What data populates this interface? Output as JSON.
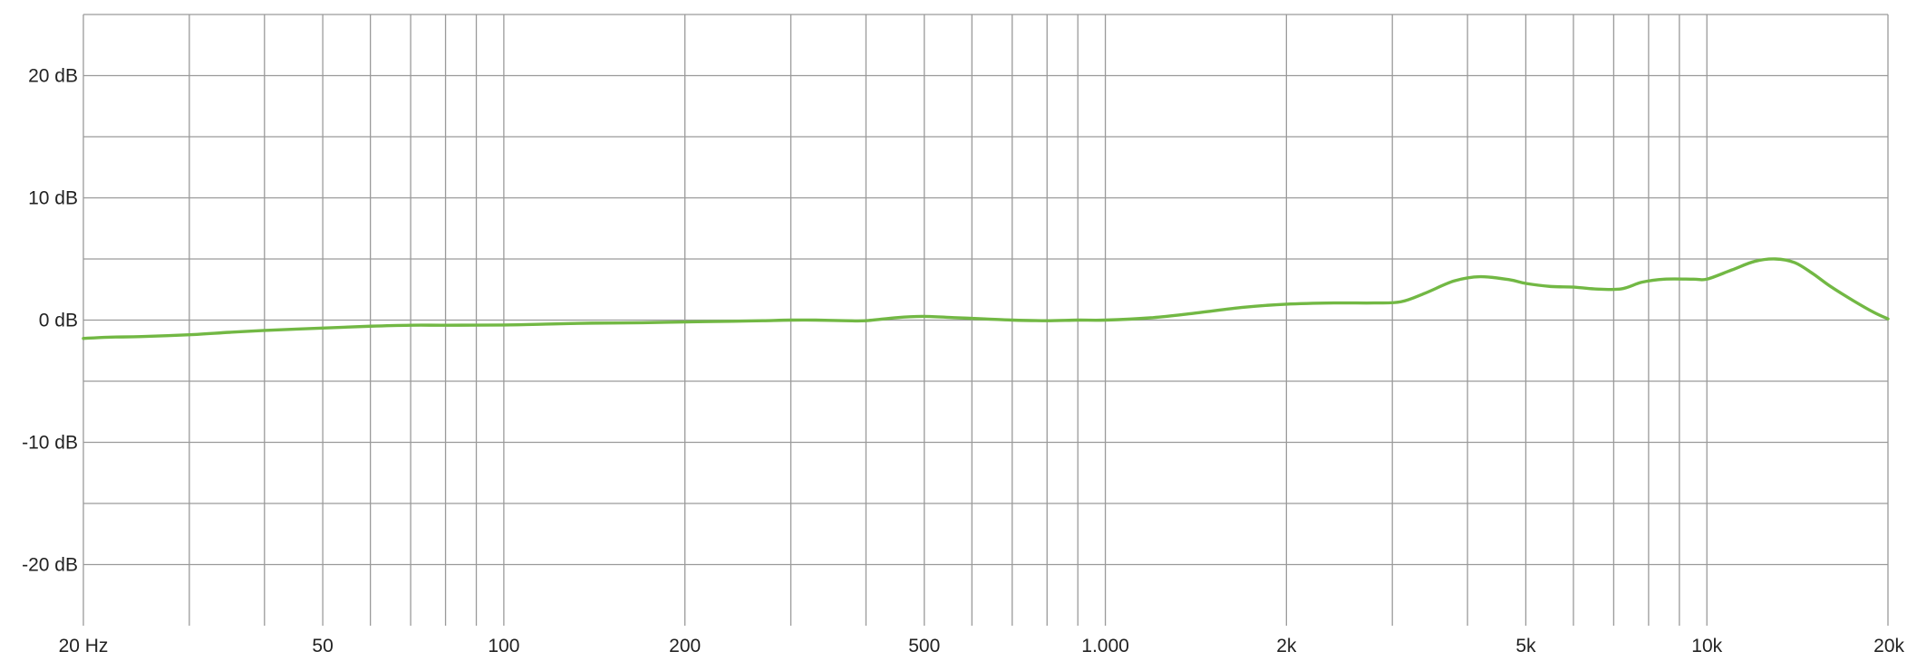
{
  "chart_data": {
    "type": "line",
    "title": "",
    "xlabel": "",
    "ylabel": "",
    "x_scale": "log",
    "xlim": [
      20,
      20000
    ],
    "ylim": [
      -25,
      25
    ],
    "grid": true,
    "x_ticks": [
      {
        "value": 20,
        "label": "20 Hz"
      },
      {
        "value": 50,
        "label": "50"
      },
      {
        "value": 100,
        "label": "100"
      },
      {
        "value": 200,
        "label": "200"
      },
      {
        "value": 500,
        "label": "500"
      },
      {
        "value": 1000,
        "label": "1.000"
      },
      {
        "value": 2000,
        "label": "2k"
      },
      {
        "value": 5000,
        "label": "5k"
      },
      {
        "value": 10000,
        "label": "10k"
      },
      {
        "value": 20000,
        "label": "20k"
      }
    ],
    "x_minor_gridlines": [
      30,
      40,
      60,
      70,
      80,
      90,
      300,
      400,
      600,
      700,
      800,
      900,
      3000,
      4000,
      6000,
      7000,
      8000,
      9000
    ],
    "y_ticks": [
      {
        "value": 20,
        "label": "20 dB"
      },
      {
        "value": 10,
        "label": "10 dB"
      },
      {
        "value": 0,
        "label": "0 dB"
      },
      {
        "value": -10,
        "label": "-10 dB"
      },
      {
        "value": -20,
        "label": "-20 dB"
      }
    ],
    "y_minor_gridlines": [
      25,
      15,
      5,
      -5,
      -15
    ],
    "series": [
      {
        "color": "#72b844",
        "x": [
          20,
          22,
          25,
          30,
          35,
          40,
          50,
          60,
          70,
          80,
          100,
          120,
          140,
          170,
          200,
          240,
          270,
          300,
          330,
          370,
          400,
          450,
          500,
          560,
          630,
          700,
          800,
          900,
          1000,
          1200,
          1400,
          1700,
          2000,
          2400,
          2800,
          3100,
          3400,
          3800,
          4200,
          4700,
          5000,
          5500,
          6000,
          6500,
          7200,
          7800,
          8500,
          9500,
          10000,
          11000,
          12000,
          13000,
          14000,
          15000,
          16000,
          17500,
          19000,
          20000
        ],
        "y": [
          -1.5,
          -1.4,
          -1.35,
          -1.2,
          -1.0,
          -0.85,
          -0.65,
          -0.5,
          -0.42,
          -0.42,
          -0.4,
          -0.32,
          -0.25,
          -0.22,
          -0.15,
          -0.1,
          -0.05,
          0.0,
          0.0,
          -0.05,
          -0.05,
          0.2,
          0.3,
          0.2,
          0.1,
          0.0,
          -0.05,
          0.0,
          0.0,
          0.2,
          0.55,
          1.05,
          1.3,
          1.4,
          1.4,
          1.5,
          2.2,
          3.2,
          3.55,
          3.3,
          3.0,
          2.75,
          2.7,
          2.55,
          2.55,
          3.1,
          3.35,
          3.35,
          3.35,
          4.1,
          4.8,
          5.0,
          4.7,
          3.8,
          2.8,
          1.6,
          0.6,
          0.1
        ]
      }
    ]
  }
}
